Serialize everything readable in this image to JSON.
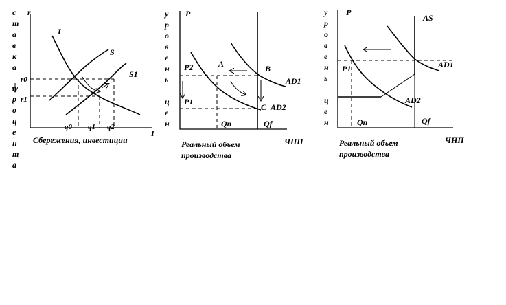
{
  "panel1": {
    "y_axis_top": "r",
    "y_axis_vertical": [
      "с",
      "т",
      "а",
      "в",
      "к",
      "а"
    ],
    "y_axis_vertical2": [
      "п",
      "р",
      "о",
      "ц",
      "е",
      "н",
      "т",
      "а"
    ],
    "curve_i": "I",
    "curve_s": "S",
    "curve_s1": "S1",
    "r0": "r0",
    "r1": "r1",
    "q0": "q0",
    "q1": "q1",
    "q2": "q2",
    "x_axis_end": "I",
    "x_caption": "Сбережения, инвестиции"
  },
  "panel2": {
    "y_axis_top": "P",
    "y_axis_vertical": [
      "у",
      "р",
      "о",
      "в",
      "е",
      "н",
      "ь"
    ],
    "y_axis_vertical2": [
      "ц",
      "е",
      "н"
    ],
    "p2": "P2",
    "p1": "P1",
    "point_a": "A",
    "point_b": "B",
    "point_c": "C",
    "ad1": "AD1",
    "ad2": "AD2",
    "qn": "Qn",
    "qf": "Qf",
    "x_caption_line1": "Реальный объем",
    "x_caption_line2": "производства",
    "x_axis_end": "ЧНП"
  },
  "panel3": {
    "y_axis_top": "P",
    "y_axis_vertical": [
      "у",
      "р",
      "о",
      "в",
      "е",
      "н",
      "ь"
    ],
    "y_axis_vertical2": [
      "ц",
      "е",
      "н"
    ],
    "as": "AS",
    "ad1": "AD1",
    "ad2": "AD2",
    "p1": "P1",
    "qn": "Qn",
    "qf": "Qf",
    "x_caption_line1": "Реальный объем",
    "x_caption_line2": "производства",
    "x_axis_end": "ЧНП"
  }
}
